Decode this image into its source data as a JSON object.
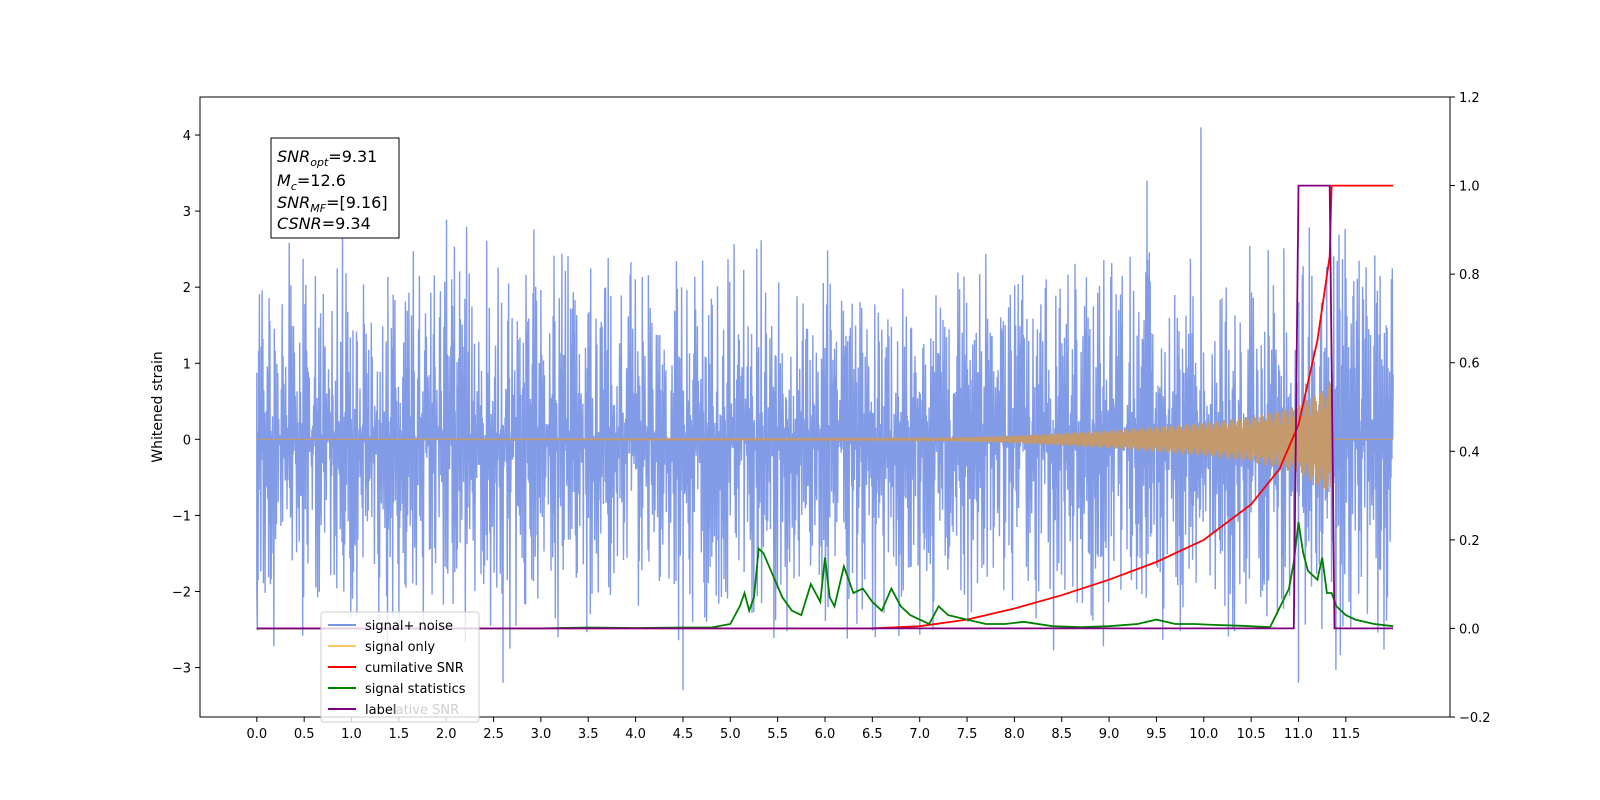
{
  "chart_data": {
    "type": "line",
    "title": "",
    "xlabel": "",
    "ylabel": "Whitened strain",
    "xlim": [
      -0.6,
      12.6
    ],
    "ylim": [
      -3.65,
      4.5
    ],
    "ylim_right": [
      -0.2,
      1.2
    ],
    "grid": false,
    "legend_placement": "lower-left",
    "x_ticks": [
      "0.0",
      "0.5",
      "1.0",
      "1.5",
      "2.0",
      "2.5",
      "3.0",
      "3.5",
      "4.0",
      "4.5",
      "5.0",
      "5.5",
      "6.0",
      "6.5",
      "7.0",
      "7.5",
      "8.0",
      "8.5",
      "9.0",
      "9.5",
      "10.0",
      "10.5",
      "11.0",
      "11.5"
    ],
    "y_ticks_left": [
      "−3",
      "−2",
      "−1",
      "0",
      "1",
      "2",
      "3",
      "4"
    ],
    "y_ticks_right": [
      "−0.2",
      "0.0",
      "0.2",
      "0.4",
      "0.6",
      "0.8",
      "1.0",
      "1.2"
    ],
    "annotation": {
      "snr_opt": {
        "sym": "SNR",
        "sub": "opt",
        "value": "=9.31"
      },
      "mc": {
        "sym": "M",
        "sub": "c",
        "value": "=12.6"
      },
      "snr_mf": {
        "sym": "SNR",
        "sub": "MF",
        "value": "=[9.16]"
      },
      "csnr": {
        "sym": "CSNR",
        "sub": "",
        "value": "=9.34"
      }
    },
    "legend": [
      {
        "label": "signal+ noise",
        "color": "#7b96e6"
      },
      {
        "label": "signal only",
        "color": "#ffc864"
      },
      {
        "label": "cumilative SNR",
        "color": "#ff0000"
      },
      {
        "label": "signal statistics",
        "color": "#008000"
      },
      {
        "label": "label",
        "color": "#800080"
      }
    ],
    "legend_overlap_text": "lative SNR",
    "series": [
      {
        "name": "signal+ noise",
        "axis": "left",
        "color": "#7b96e6",
        "kind": "noise",
        "x_range": [
          0.0,
          12.0
        ],
        "envelope_x": [
          0,
          1,
          2,
          3,
          4,
          5,
          6,
          7,
          8,
          9,
          10,
          11,
          11.3,
          12
        ],
        "envelope_hi": [
          2.6,
          2.8,
          2.9,
          2.8,
          2.6,
          2.7,
          2.6,
          2.5,
          2.6,
          2.7,
          2.7,
          2.8,
          3.1,
          2.8
        ],
        "envelope_lo": [
          -2.9,
          -2.9,
          -3.0,
          -2.8,
          -2.8,
          -2.9,
          -2.8,
          -2.8,
          -2.7,
          -2.9,
          -2.9,
          -3.0,
          -3.1,
          -2.8
        ],
        "peaks": [
          [
            9.97,
            4.1
          ],
          [
            9.4,
            3.4
          ],
          [
            11.0,
            -3.2
          ],
          [
            4.5,
            -3.3
          ],
          [
            2.6,
            -3.2
          ],
          [
            0.0,
            -2.0
          ]
        ]
      },
      {
        "name": "signal only",
        "axis": "left",
        "color": "#c49a6c",
        "kind": "chirp",
        "amplitude_x": [
          0,
          7.0,
          8.0,
          9.0,
          10.0,
          10.5,
          11.0,
          11.3,
          11.35,
          11.36,
          12.0
        ],
        "amplitude_y": [
          0.0,
          0.01,
          0.05,
          0.12,
          0.22,
          0.3,
          0.45,
          0.7,
          0.8,
          0.0,
          0.0
        ]
      },
      {
        "name": "cumilative SNR",
        "axis": "right",
        "color": "#ff0000",
        "x": [
          0,
          6.5,
          7.0,
          7.5,
          8.0,
          8.5,
          9.0,
          9.5,
          10.0,
          10.5,
          10.8,
          11.0,
          11.2,
          11.33,
          11.35,
          11.55,
          12.0
        ],
        "y": [
          0,
          0.0,
          0.005,
          0.02,
          0.045,
          0.075,
          0.11,
          0.15,
          0.2,
          0.28,
          0.36,
          0.46,
          0.65,
          0.84,
          1.0,
          1.0,
          1.0
        ]
      },
      {
        "name": "signal statistics",
        "axis": "right",
        "color": "#008000",
        "x": [
          0,
          3.0,
          3.5,
          4.0,
          4.5,
          4.8,
          5.0,
          5.1,
          5.15,
          5.2,
          5.25,
          5.3,
          5.35,
          5.45,
          5.55,
          5.65,
          5.75,
          5.85,
          5.95,
          6.0,
          6.05,
          6.1,
          6.2,
          6.3,
          6.4,
          6.5,
          6.6,
          6.7,
          6.8,
          6.9,
          7.0,
          7.1,
          7.2,
          7.3,
          7.5,
          7.7,
          7.9,
          8.1,
          8.4,
          8.7,
          9.0,
          9.3,
          9.5,
          9.7,
          9.9,
          10.1,
          10.4,
          10.7,
          10.9,
          10.95,
          11.0,
          11.05,
          11.1,
          11.2,
          11.25,
          11.3,
          11.35,
          11.4,
          11.5,
          11.6,
          11.8,
          12.0
        ],
        "y": [
          0,
          0.0,
          0.002,
          0.001,
          0.002,
          0.002,
          0.01,
          0.05,
          0.08,
          0.04,
          0.07,
          0.18,
          0.17,
          0.12,
          0.07,
          0.04,
          0.03,
          0.1,
          0.06,
          0.16,
          0.07,
          0.05,
          0.14,
          0.08,
          0.09,
          0.06,
          0.04,
          0.09,
          0.05,
          0.03,
          0.02,
          0.01,
          0.05,
          0.03,
          0.02,
          0.01,
          0.01,
          0.015,
          0.005,
          0.003,
          0.005,
          0.01,
          0.02,
          0.01,
          0.01,
          0.008,
          0.006,
          0.003,
          0.09,
          0.15,
          0.24,
          0.17,
          0.13,
          0.11,
          0.16,
          0.08,
          0.08,
          0.05,
          0.03,
          0.02,
          0.01,
          0.005
        ]
      },
      {
        "name": "label",
        "axis": "right",
        "color": "#800080",
        "x": [
          0,
          10.95,
          11.0,
          11.33,
          11.38,
          12.0
        ],
        "y": [
          0,
          0,
          1,
          1,
          0,
          0
        ]
      }
    ]
  }
}
